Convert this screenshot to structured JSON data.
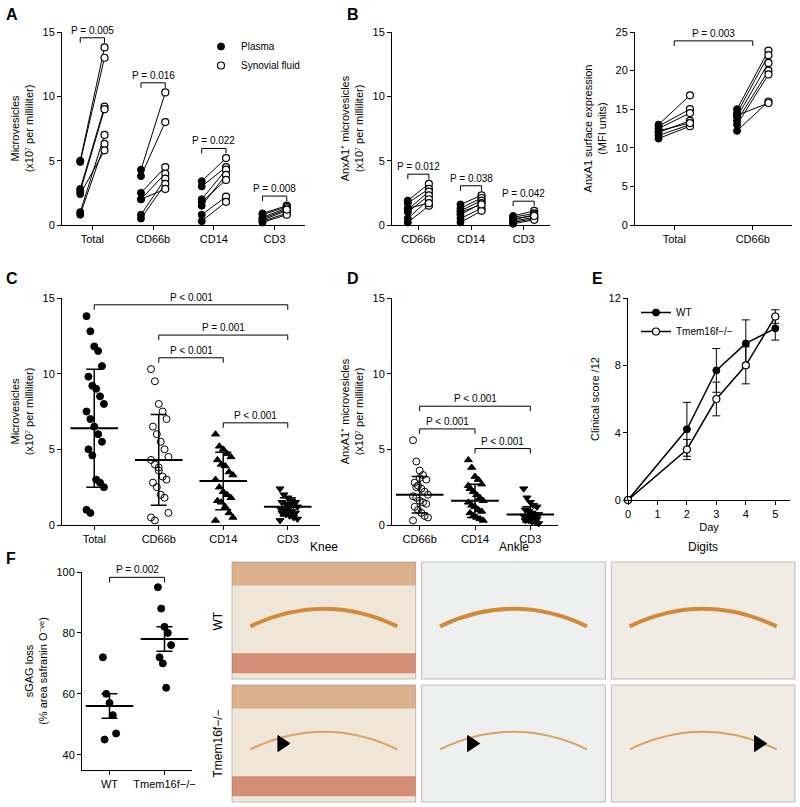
{
  "chart_data": [
    {
      "type": "paired_scatter",
      "panel_label": "A",
      "y_label": "Microvesicles (x10⁷ per milliliter)",
      "categories": [
        "Total",
        "CD66b",
        "CD14",
        "CD3"
      ],
      "series": [
        {
          "name": "Plasma",
          "marker": "filled",
          "color": "#000000",
          "values": [
            [
              5.0,
              4.9,
              2.8,
              2.6,
              1.0,
              0.8,
              2.4
            ],
            [
              4.3,
              3.8,
              2.5,
              2.0,
              0.8,
              0.5,
              2.0
            ],
            [
              3.4,
              3.0,
              2.0,
              1.5,
              0.8,
              0.3,
              1.8
            ],
            [
              0.9,
              0.8,
              0.6,
              0.4,
              0.3,
              0.2,
              0.5
            ]
          ]
        },
        {
          "name": "Synovial fluid",
          "marker": "open",
          "color": "#000000",
          "values": [
            [
              13.8,
              13.0,
              9.2,
              9.0,
              7.0,
              6.3,
              5.8
            ],
            [
              10.3,
              8.0,
              4.5,
              4.0,
              3.6,
              3.2,
              2.8
            ],
            [
              5.2,
              4.5,
              4.3,
              3.9,
              2.2,
              1.8,
              3.5
            ],
            [
              1.5,
              1.4,
              1.3,
              1.1,
              0.9,
              0.8,
              1.2
            ]
          ]
        }
      ],
      "brackets": [
        {
          "from": "Total",
          "to": "Total",
          "text": "P = 0.005"
        },
        {
          "from": "CD66b",
          "to": "CD66b",
          "text": "P = 0.016"
        },
        {
          "from": "CD14",
          "to": "CD14",
          "text": "P = 0.022"
        },
        {
          "from": "CD3",
          "to": "CD3",
          "text": "P = 0.008"
        }
      ],
      "ylim": [
        0,
        15
      ],
      "yticks": [
        0,
        5,
        10,
        15
      ],
      "legend": "top-right"
    },
    {
      "type": "paired_scatter",
      "panel_label": "B",
      "y_label": "AnxA1⁺ microvesicles (x10⁷ per milliliter)",
      "categories": [
        "CD66b",
        "CD14",
        "CD3"
      ],
      "series": [
        {
          "name": "Plasma",
          "marker": "filled",
          "color": "#000000",
          "values": [
            [
              1.9,
              1.7,
              1.2,
              1.0,
              0.5,
              0.2,
              1.3
            ],
            [
              1.6,
              1.3,
              1.1,
              0.8,
              0.5,
              0.2,
              1.0
            ],
            [
              0.7,
              0.6,
              0.4,
              0.3,
              0.2,
              0.1,
              0.5
            ]
          ]
        },
        {
          "name": "Synovial fluid",
          "marker": "open",
          "color": "#000000",
          "values": [
            [
              3.2,
              2.8,
              2.6,
              2.3,
              2.0,
              1.5,
              1.7
            ],
            [
              2.3,
              2.1,
              1.9,
              1.7,
              1.3,
              1.1,
              1.6
            ],
            [
              1.1,
              0.9,
              0.8,
              0.6,
              0.5,
              0.4,
              0.7
            ]
          ]
        }
      ],
      "brackets": [
        {
          "from": "CD66b",
          "to": "CD66b",
          "text": "P = 0.012"
        },
        {
          "from": "CD14",
          "to": "CD14",
          "text": "P = 0.038"
        },
        {
          "from": "CD3",
          "to": "CD3",
          "text": "P = 0.042"
        }
      ],
      "ylim": [
        0,
        15
      ],
      "yticks": [
        0,
        5,
        10,
        15
      ]
    },
    {
      "type": "paired_scatter",
      "y_label": "AnxA1 surface expression (MFI units)",
      "categories": [
        "Total",
        "CD66b"
      ],
      "series": [
        {
          "name": "Plasma",
          "marker": "filled",
          "color": "#000000",
          "values": [
            [
              13.0,
              12.8,
              12.5,
              12.0,
              11.6,
              11.2,
              12.2
            ],
            [
              15.0,
              14.5,
              14.0,
              13.5,
              13.0,
              12.2,
              14.2
            ]
          ]
        },
        {
          "name": "Synovial fluid",
          "marker": "open",
          "color": "#000000",
          "values": [
            [
              16.8,
              15.0,
              14.5,
              13.5,
              13.0,
              12.8,
              13.2
            ],
            [
              22.6,
              22.0,
              21.0,
              20.0,
              19.5,
              16.0,
              15.8
            ]
          ]
        }
      ],
      "brackets": [
        {
          "from": "Total",
          "to": "CD66b",
          "text": "P = 0.003"
        }
      ],
      "ylim": [
        0,
        25
      ],
      "yticks": [
        0,
        5,
        10,
        15,
        20,
        25
      ]
    },
    {
      "type": "dot_plot",
      "panel_label": "C",
      "y_label": "Microvesicles (x10⁷ per milliliter)",
      "categories": [
        "Total",
        "CD66b",
        "CD14",
        "CD3"
      ],
      "markers": [
        "circle",
        "circle-open",
        "triangle-up",
        "triangle-down"
      ],
      "values": [
        [
          13.8,
          12.8,
          11.8,
          11.5,
          10.5,
          9.8,
          9.2,
          9.0,
          8.5,
          8.0,
          7.5,
          7.0,
          6.5,
          6.0,
          5.5,
          5.0,
          4.6,
          3.0,
          2.8,
          2.5,
          1.0,
          0.8
        ],
        [
          10.3,
          9.5,
          8.0,
          7.5,
          7.0,
          6.5,
          6.0,
          5.5,
          5.0,
          4.5,
          4.3,
          4.0,
          3.6,
          3.2,
          3.0,
          2.8,
          2.5,
          2.0,
          1.8,
          0.8,
          0.5,
          0.3,
          3.8
        ],
        [
          6.0,
          5.2,
          5.0,
          4.7,
          4.5,
          4.3,
          4.0,
          3.9,
          3.5,
          3.3,
          3.0,
          2.5,
          2.2,
          2.0,
          1.8,
          1.6,
          1.5,
          1.2,
          0.8,
          0.5,
          0.3
        ],
        [
          2.4,
          2.0,
          1.8,
          1.6,
          1.5,
          1.5,
          1.4,
          1.3,
          1.3,
          1.2,
          1.1,
          1.0,
          1.0,
          0.9,
          0.8,
          0.8,
          0.7,
          0.6,
          0.5,
          0.4,
          0.3
        ]
      ],
      "means": [
        6.4,
        4.3,
        2.9,
        1.2
      ],
      "errors": [
        3.9,
        3.0,
        1.9,
        0.6
      ],
      "brackets": [
        {
          "from": "Total",
          "to": "CD3",
          "text": "P < 0.001"
        },
        {
          "from": "CD66b",
          "to": "CD3",
          "text": "P = 0.001"
        },
        {
          "from": "CD66b",
          "to": "CD14",
          "text": "P < 0.001"
        },
        {
          "from": "CD14",
          "to": "CD3",
          "text": "P < 0.001"
        }
      ],
      "ylim": [
        0,
        15
      ],
      "yticks": [
        0,
        5,
        10,
        15
      ]
    },
    {
      "type": "dot_plot",
      "panel_label": "D",
      "y_label": "AnxA1⁺ microvesicles (x10⁷ per milliliter)",
      "categories": [
        "CD66b",
        "CD14",
        "CD3"
      ],
      "markers": [
        "circle-open",
        "triangle-up",
        "triangle-down"
      ],
      "values": [
        [
          5.6,
          4.2,
          3.6,
          3.3,
          3.0,
          2.8,
          2.6,
          2.4,
          2.2,
          2.0,
          1.9,
          1.8,
          1.6,
          1.5,
          1.4,
          1.2,
          1.0,
          0.8,
          0.6,
          0.5,
          0.3,
          2.5,
          3.1
        ],
        [
          4.3,
          3.8,
          3.2,
          3.0,
          2.7,
          2.4,
          2.2,
          2.0,
          1.8,
          1.6,
          1.5,
          1.3,
          1.2,
          1.0,
          0.9,
          0.8,
          0.6,
          0.5,
          0.4,
          0.3,
          2.6
        ],
        [
          2.4,
          1.8,
          1.5,
          1.3,
          1.2,
          1.0,
          0.9,
          0.8,
          0.7,
          0.7,
          0.6,
          0.5,
          0.5,
          0.4,
          0.4,
          0.3,
          0.3,
          0.2,
          0.2,
          0.1
        ]
      ],
      "means": [
        2.0,
        1.6,
        0.7
      ],
      "errors": [
        1.2,
        1.1,
        0.5
      ],
      "brackets": [
        {
          "from": "CD66b",
          "to": "CD3",
          "text": "P < 0.001"
        },
        {
          "from": "CD66b",
          "to": "CD14",
          "text": "P < 0.001"
        },
        {
          "from": "CD14",
          "to": "CD3",
          "text": "P < 0.001"
        }
      ],
      "ylim": [
        0,
        15
      ],
      "yticks": [
        0,
        5,
        10,
        15
      ]
    },
    {
      "type": "line",
      "panel_label": "E",
      "x_label": "Day",
      "y_label": "Clinical score /12",
      "x": [
        0,
        2,
        3,
        4,
        5
      ],
      "series": [
        {
          "name": "WT",
          "marker": "filled",
          "color": "#000000",
          "values": [
            0,
            4.2,
            7.7,
            9.3,
            10.2
          ],
          "errors": [
            0,
            1.6,
            1.3,
            1.4,
            0.7
          ]
        },
        {
          "name": "Tmem16f−/−",
          "marker": "open",
          "color": "#000000",
          "values": [
            0,
            3.0,
            6.0,
            8.0,
            10.9
          ],
          "errors": [
            0,
            0.6,
            1.0,
            1.1,
            0.4
          ]
        }
      ],
      "xlim": [
        0,
        5.5
      ],
      "xticks": [
        0,
        1,
        2,
        3,
        4,
        5
      ],
      "ylim": [
        0,
        12
      ],
      "yticks": [
        0,
        4,
        8,
        12
      ],
      "legend": "top-left"
    },
    {
      "type": "dot_plot",
      "panel_label": "F",
      "y_label": "sGAG loss (% area safranin O⁻ᵛᵉ)",
      "categories": [
        "WT",
        "Tmem16f−/−"
      ],
      "markers": [
        "circle",
        "circle"
      ],
      "values": [
        [
          72,
          60,
          57,
          53,
          47,
          45
        ],
        [
          95,
          88,
          82,
          80,
          76,
          72,
          70,
          62
        ]
      ],
      "means": [
        56,
        78
      ],
      "errors": [
        4,
        4
      ],
      "brackets": [
        {
          "from": "WT",
          "to": "Tmem16f−/−",
          "text": "P = 0.002"
        }
      ],
      "ylim": [
        35,
        100
      ],
      "yticks": [
        40,
        60,
        80,
        100
      ]
    },
    {
      "type": "image_grid",
      "columns": [
        "Knee",
        "Ankle",
        "Digits"
      ],
      "rows": [
        "WT",
        "Tmem16f−/−"
      ]
    }
  ]
}
